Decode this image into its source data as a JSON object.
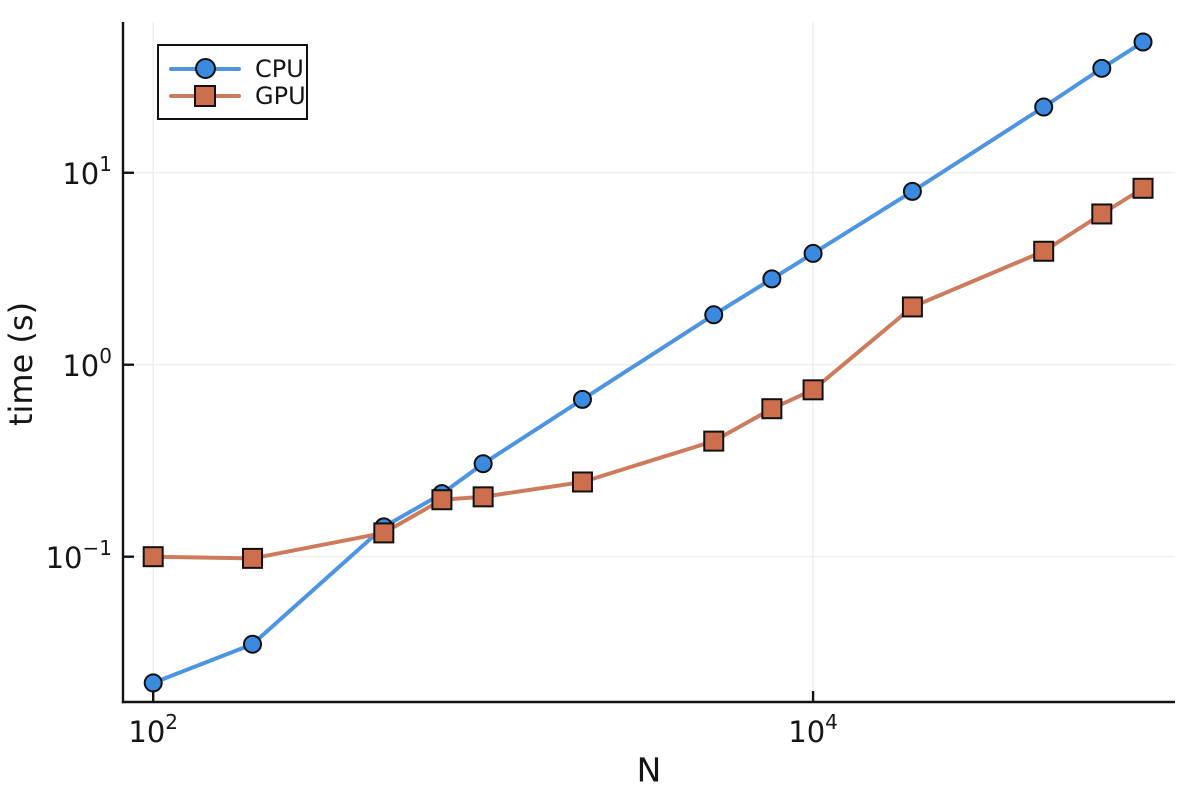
{
  "chart_data": {
    "type": "line",
    "title": "",
    "xlabel": "N",
    "ylabel": "time (s)",
    "x_scale": "log",
    "y_scale": "log",
    "xlim": [
      81,
      125000
    ],
    "ylim": [
      0.0175,
      61
    ],
    "grid": true,
    "legend_position": "top-left",
    "x": [
      100,
      200,
      500,
      750,
      1000,
      2000,
      5000,
      7500,
      10000,
      20000,
      50000,
      75000,
      100000
    ],
    "series": [
      {
        "name": "CPU",
        "marker": "circle",
        "line_color": "#4E95E1",
        "marker_color": "#3A8BDF",
        "values": [
          0.022,
          0.035,
          0.143,
          0.213,
          0.305,
          0.66,
          1.82,
          2.8,
          3.8,
          8.0,
          22,
          35,
          48
        ]
      },
      {
        "name": "GPU",
        "marker": "square",
        "line_color": "#CC7C5C",
        "marker_color": "#CD6F4D",
        "values": [
          0.1,
          0.098,
          0.133,
          0.198,
          0.205,
          0.245,
          0.4,
          0.59,
          0.74,
          2.0,
          3.9,
          6.1,
          8.3
        ]
      }
    ],
    "x_ticks": [
      {
        "value": 100,
        "base": "10",
        "exp": "2"
      },
      {
        "value": 10000,
        "base": "10",
        "exp": "4"
      }
    ],
    "y_ticks": [
      {
        "value": 10,
        "base": "10",
        "exp": "1"
      },
      {
        "value": 1,
        "base": "10",
        "exp": "0"
      },
      {
        "value": 0.1,
        "base": "10",
        "exp": "−1"
      }
    ],
    "style": {
      "marker_edge": "#111111",
      "grid_color": "#ebebeb",
      "spine_color": "#131313",
      "background": "#ffffff"
    }
  }
}
